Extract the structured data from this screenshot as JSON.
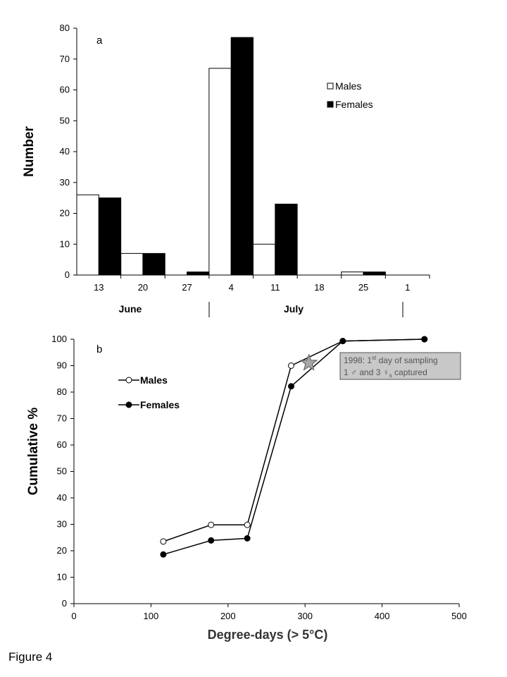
{
  "figure_caption": "Figure 4",
  "chart_data": [
    {
      "type": "bar",
      "panel_label": "a",
      "ylabel": "Number",
      "xlabel": "",
      "ylim": [
        0,
        80
      ],
      "yticks": [
        0,
        10,
        20,
        30,
        40,
        50,
        60,
        70,
        80
      ],
      "categories": [
        "13",
        "20",
        "27",
        "4",
        "11",
        "18",
        "25",
        "1"
      ],
      "month_labels": [
        "June",
        "July"
      ],
      "series": [
        {
          "name": "Males",
          "color": "#ffffff",
          "values": [
            26,
            7,
            0,
            67,
            10,
            0,
            1,
            0
          ]
        },
        {
          "name": "Females",
          "color": "#000000",
          "values": [
            25,
            7,
            1,
            77,
            23,
            0,
            1,
            0
          ]
        }
      ],
      "legend_position": "right",
      "grid": false
    },
    {
      "type": "line",
      "panel_label": "b",
      "ylabel": "Cumulative %",
      "xlabel": "Degree-days (> 5°C)",
      "xlim": [
        0,
        500
      ],
      "ylim": [
        0,
        100
      ],
      "xticks": [
        0,
        100,
        200,
        300,
        400,
        500
      ],
      "yticks": [
        0,
        10,
        20,
        30,
        40,
        50,
        60,
        70,
        80,
        90,
        100
      ],
      "series": [
        {
          "name": "Males",
          "marker": "open-circle",
          "x": [
            116,
            178,
            225,
            282,
            349,
            455
          ],
          "y": [
            23.5,
            29.8,
            29.8,
            90,
            99.3,
            100
          ]
        },
        {
          "name": "Females",
          "marker": "filled-circle",
          "x": [
            116,
            178,
            225,
            282,
            349,
            455
          ],
          "y": [
            18.6,
            23.9,
            24.7,
            82.2,
            99.3,
            100
          ]
        }
      ],
      "annotation": {
        "star": {
          "x": 305,
          "y": 91
        },
        "line1_pre": "1998: 1",
        "line1_sup": "st",
        "line1_post": " day of sampling",
        "line2_pre": "1 ♂ and 3 ♀",
        "line2_sub": "s",
        "line2_post": " captured"
      },
      "legend_position": "top-left",
      "grid": false
    }
  ]
}
